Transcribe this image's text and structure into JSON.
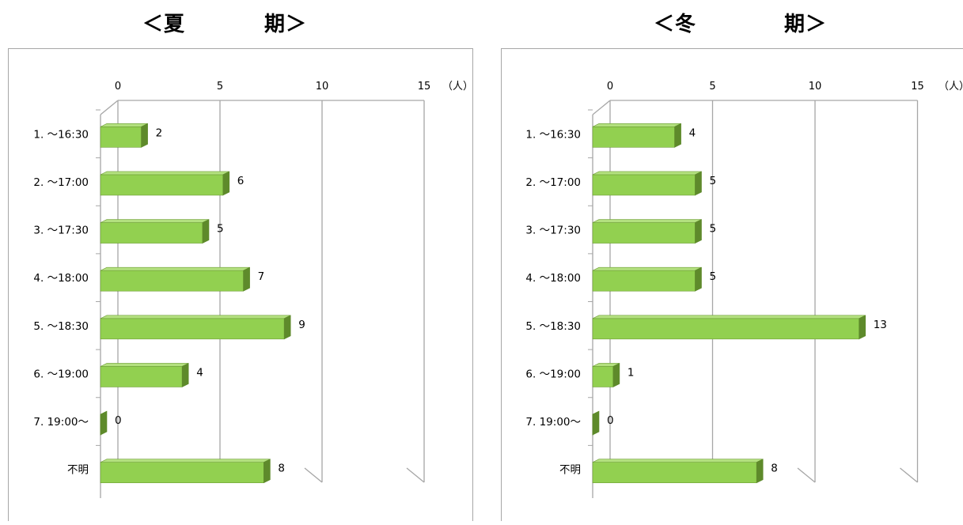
{
  "chart_data": [
    {
      "type": "bar",
      "title_left": "＜夏",
      "title_right": "期＞",
      "categories": [
        "1. ～16:30",
        "2. ～17:00",
        "3. ～17:30",
        "4. ～18:00",
        "5. ～18:30",
        "6. ～19:00",
        "7. 19:00～",
        "不明"
      ],
      "values": [
        2,
        6,
        5,
        7,
        9,
        4,
        0,
        8
      ],
      "xlim": [
        0,
        15
      ],
      "ticks": [
        "0",
        "5",
        "10",
        "15"
      ],
      "unit": "（人）",
      "orientation": "horizontal",
      "grid": true,
      "colors": {
        "bar_face": "#92d050",
        "bar_top": "#b3e07f",
        "bar_side": "#5e8a2b",
        "bar_edge": "#6f9e37"
      }
    },
    {
      "type": "bar",
      "title_left": "＜冬",
      "title_right": "期＞",
      "categories": [
        "1. ～16:30",
        "2. ～17:00",
        "3. ～17:30",
        "4. ～18:00",
        "5. ～18:30",
        "6. ～19:00",
        "7. 19:00～",
        "不明"
      ],
      "values": [
        4,
        5,
        5,
        5,
        13,
        1,
        0,
        8
      ],
      "xlim": [
        0,
        15
      ],
      "ticks": [
        "0",
        "5",
        "10",
        "15"
      ],
      "unit": "（人）",
      "orientation": "horizontal",
      "grid": true,
      "colors": {
        "bar_face": "#92d050",
        "bar_top": "#b3e07f",
        "bar_side": "#5e8a2b",
        "bar_edge": "#6f9e37"
      }
    }
  ]
}
